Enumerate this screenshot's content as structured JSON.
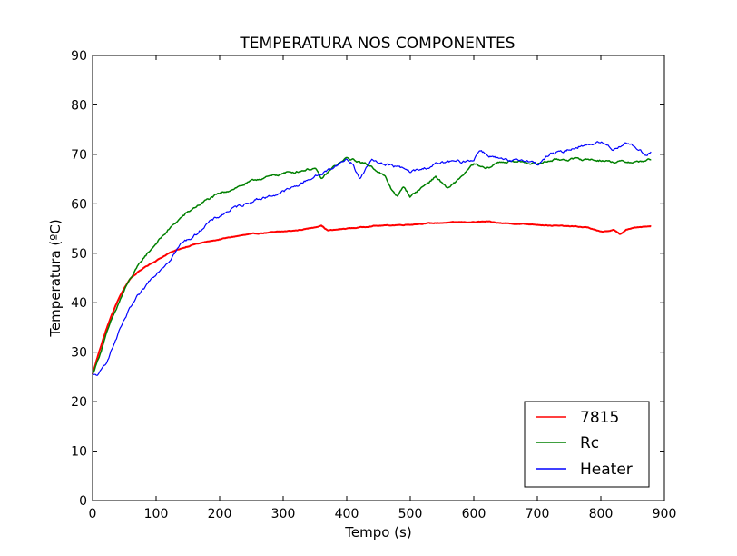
{
  "chart_data": {
    "type": "line",
    "title": "TEMPERATURA NOS COMPONENTES",
    "xlabel": "Tempo (s)",
    "ylabel": "Temperatura (ºC)",
    "xlim": [
      0,
      900
    ],
    "ylim": [
      0,
      90
    ],
    "xticks": [
      0,
      100,
      200,
      300,
      400,
      500,
      600,
      700,
      800,
      900
    ],
    "yticks": [
      0,
      10,
      20,
      30,
      40,
      50,
      60,
      70,
      80,
      90
    ],
    "grid": false,
    "legend_position": "lower-right",
    "series": [
      {
        "name": "7815",
        "color": "#ff0000",
        "x": [
          0,
          10,
          20,
          30,
          40,
          50,
          60,
          70,
          80,
          90,
          100,
          120,
          140,
          160,
          180,
          200,
          220,
          240,
          260,
          280,
          300,
          320,
          340,
          360,
          370,
          380,
          400,
          420,
          440,
          460,
          480,
          500,
          520,
          540,
          560,
          580,
          600,
          620,
          640,
          660,
          680,
          700,
          720,
          740,
          760,
          780,
          800,
          820,
          830,
          840,
          860,
          880
        ],
        "y": [
          25.5,
          30,
          34,
          37.5,
          40.5,
          43,
          45,
          46,
          47,
          47.8,
          48.5,
          50,
          51,
          51.8,
          52.3,
          52.8,
          53.3,
          53.7,
          54,
          54.2,
          54.4,
          54.6,
          55,
          55.6,
          54.6,
          54.7,
          55,
          55.2,
          55.5,
          55.6,
          55.7,
          55.8,
          56,
          56.1,
          56.2,
          56.3,
          56.3,
          56.4,
          56.1,
          56,
          55.9,
          55.8,
          55.6,
          55.5,
          55.4,
          55.2,
          54.3,
          54.7,
          53.8,
          54.8,
          55.3,
          55.4
        ]
      },
      {
        "name": "Rc",
        "color": "#008000",
        "x": [
          0,
          10,
          20,
          30,
          40,
          50,
          60,
          70,
          80,
          90,
          100,
          120,
          140,
          160,
          180,
          200,
          220,
          240,
          260,
          280,
          300,
          320,
          340,
          350,
          360,
          380,
          400,
          420,
          440,
          460,
          470,
          480,
          490,
          500,
          520,
          540,
          560,
          580,
          600,
          620,
          640,
          660,
          680,
          700,
          720,
          740,
          760,
          780,
          800,
          820,
          840,
          860,
          880
        ],
        "y": [
          25.5,
          29,
          33,
          36.5,
          39.5,
          42.5,
          45,
          47,
          49,
          50.5,
          52,
          54.8,
          57.3,
          59.2,
          60.8,
          62,
          63,
          64,
          65,
          65.5,
          66.2,
          66.5,
          67,
          67.2,
          65,
          67.5,
          69.2,
          68.5,
          67.5,
          65.5,
          63,
          61.5,
          63.5,
          61.5,
          63.5,
          65.5,
          63,
          65.5,
          68,
          67,
          68.5,
          68.5,
          68.5,
          68,
          68.8,
          69,
          69,
          69,
          68.8,
          68.5,
          68.5,
          68.5,
          69
        ]
      },
      {
        "name": "Heater",
        "color": "#0000ff",
        "x": [
          0,
          10,
          20,
          30,
          40,
          50,
          60,
          70,
          80,
          90,
          100,
          120,
          140,
          160,
          180,
          200,
          220,
          240,
          260,
          280,
          300,
          320,
          340,
          360,
          380,
          400,
          410,
          420,
          440,
          460,
          480,
          500,
          520,
          540,
          560,
          580,
          600,
          610,
          620,
          640,
          660,
          680,
          700,
          720,
          740,
          760,
          780,
          800,
          820,
          840,
          860,
          870,
          880
        ],
        "y": [
          25.2,
          25.5,
          27.5,
          30.5,
          33.5,
          36.5,
          39,
          41,
          42.5,
          44.5,
          46,
          48.5,
          52,
          53.5,
          56,
          57.5,
          59,
          60,
          61,
          61.5,
          62.5,
          63.5,
          65,
          66,
          67.5,
          69,
          68,
          65,
          69,
          68,
          67.5,
          66.5,
          67,
          68,
          68.5,
          68.5,
          69,
          71,
          70,
          69,
          68.5,
          69,
          68,
          70,
          70.5,
          71.5,
          72,
          72.5,
          71,
          72.5,
          71,
          70,
          70.5
        ]
      }
    ]
  }
}
